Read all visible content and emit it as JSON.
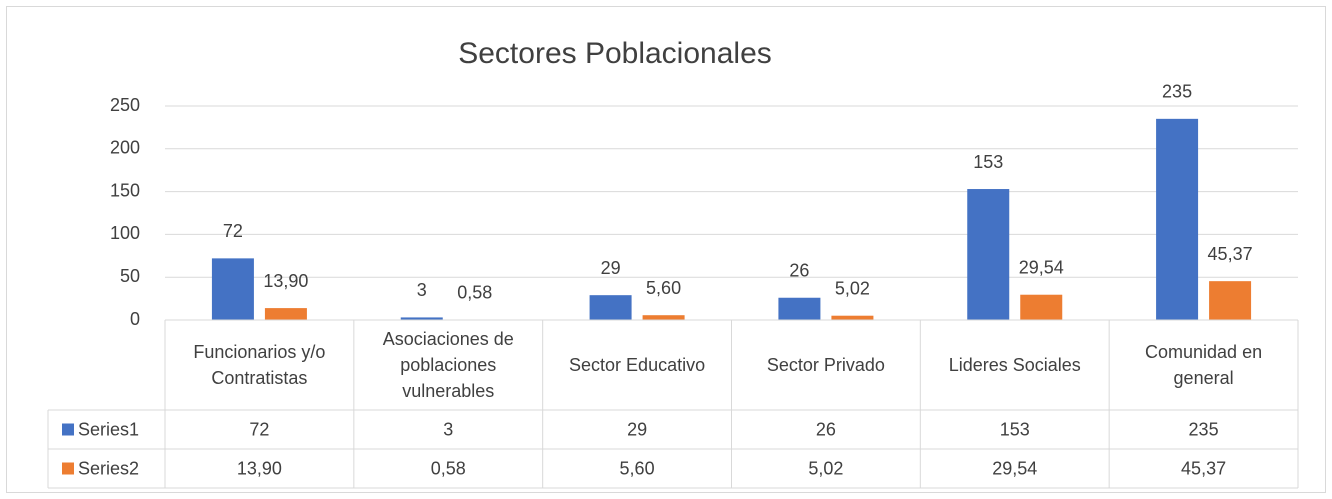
{
  "chart_data": {
    "type": "bar",
    "title": "Sectores Poblacionales",
    "categories": [
      "Funcionarios y/o Contratistas",
      "Asociaciones de poblaciones vulnerables",
      "Sector Educativo",
      "Sector Privado",
      "Lideres Sociales",
      "Comunidad en general"
    ],
    "series": [
      {
        "name": "Series1",
        "color": "#4472c4",
        "values": [
          72,
          3,
          29,
          26,
          153,
          235
        ]
      },
      {
        "name": "Series2",
        "color": "#ed7d31",
        "values": [
          13.9,
          0.58,
          5.6,
          5.02,
          29.54,
          45.37
        ],
        "value_labels": [
          "13,90",
          "0,58",
          "5,60",
          "5,02",
          "29,54",
          "45,37"
        ]
      }
    ],
    "ylim": [
      0,
      250
    ],
    "yticks": [
      0,
      50,
      100,
      150,
      200,
      250
    ],
    "grid": true,
    "data_table": true
  }
}
